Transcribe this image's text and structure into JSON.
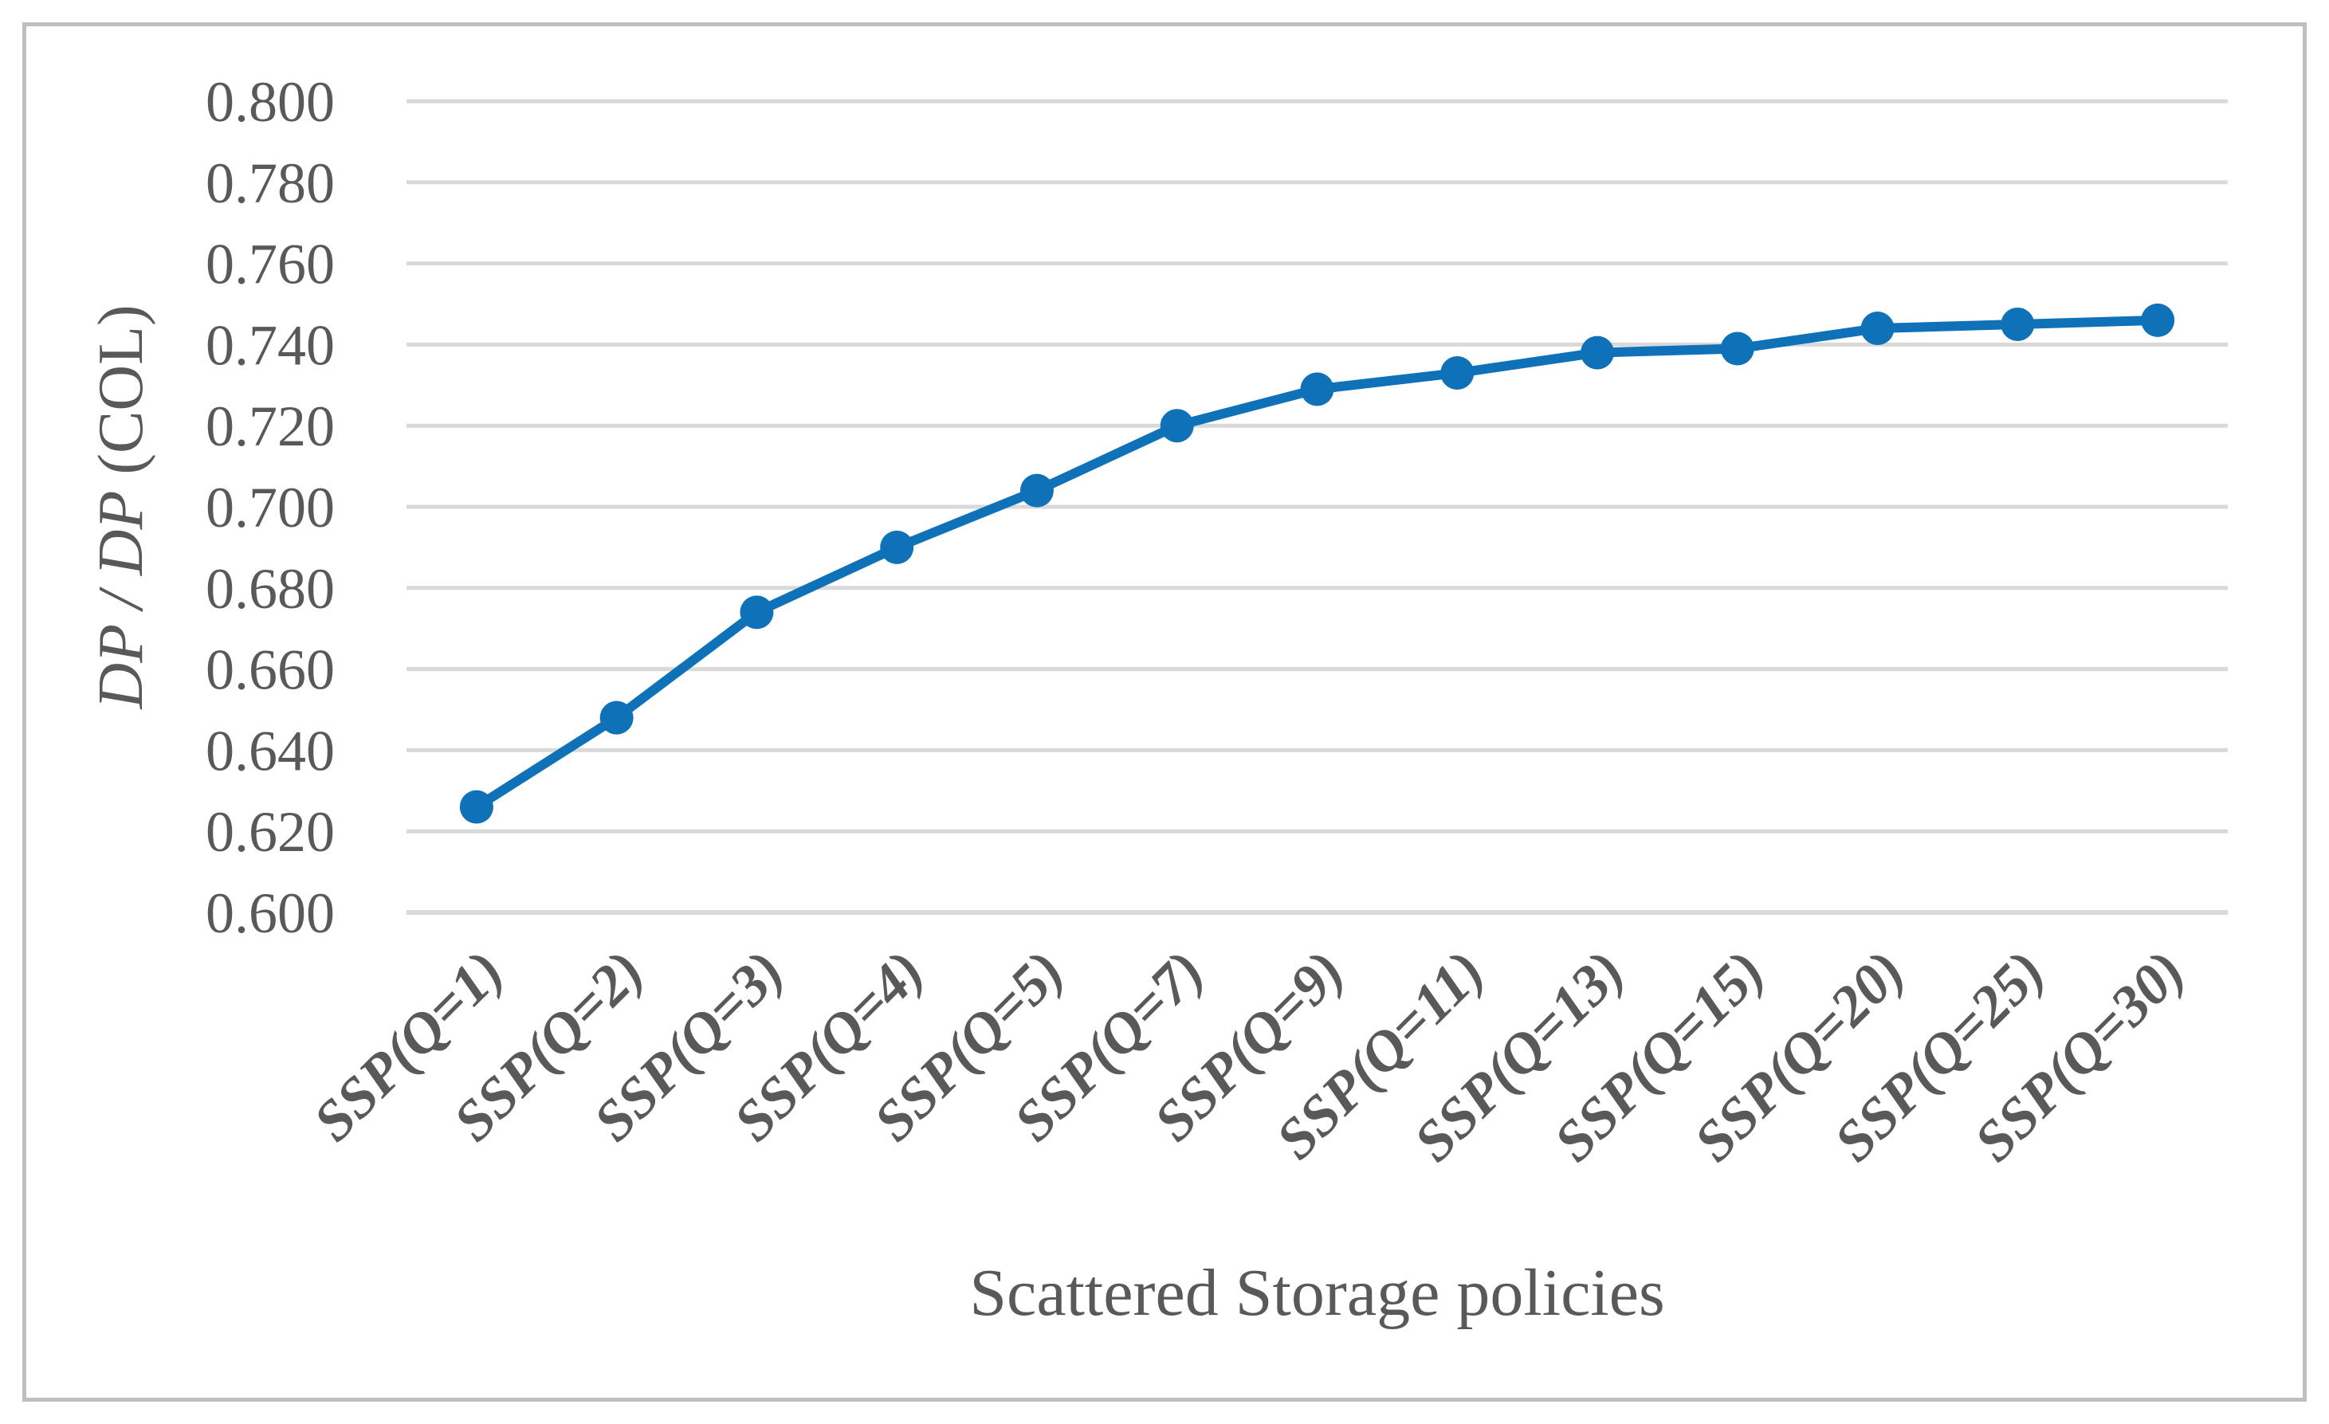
{
  "chart_data": {
    "type": "line",
    "title": "",
    "xlabel": "Scattered Storage policies",
    "ylabel": "DP / DP (COL)",
    "ylabel_italic_part": "DP / DP",
    "ylabel_regular_part": " (COL)",
    "categories": [
      "SSP(Q=1)",
      "SSP(Q=2)",
      "SSP(Q=3)",
      "SSP(Q=4)",
      "SSP(Q=5)",
      "SSP(Q=7)",
      "SSP(Q=9)",
      "SSP(Q=11)",
      "SSP(Q=13)",
      "SSP(Q=15)",
      "SSP(Q=20)",
      "SSP(Q=25)",
      "SSP(Q=30)"
    ],
    "series": [
      {
        "name": "DP / DP (COL)",
        "values": [
          0.626,
          0.648,
          0.674,
          0.69,
          0.704,
          0.72,
          0.729,
          0.733,
          0.738,
          0.739,
          0.744,
          0.745,
          0.746
        ]
      }
    ],
    "ylim": [
      0.6,
      0.8
    ],
    "ytick_step": 0.02,
    "ytick_decimals": 3,
    "ytick_labels": [
      "0.600",
      "0.620",
      "0.640",
      "0.660",
      "0.680",
      "0.700",
      "0.720",
      "0.740",
      "0.760",
      "0.780",
      "0.800"
    ],
    "grid": "horizontal-only",
    "legend_position": "none",
    "marker": "circle",
    "colors": {
      "line": "#0F72B9",
      "marker": "#0F72B9",
      "grid": "#D9D9D9",
      "axis_line": "#D9D9D9",
      "text": "#595959",
      "frame_border": "#BFBFBF",
      "background": "#FFFFFF"
    }
  }
}
